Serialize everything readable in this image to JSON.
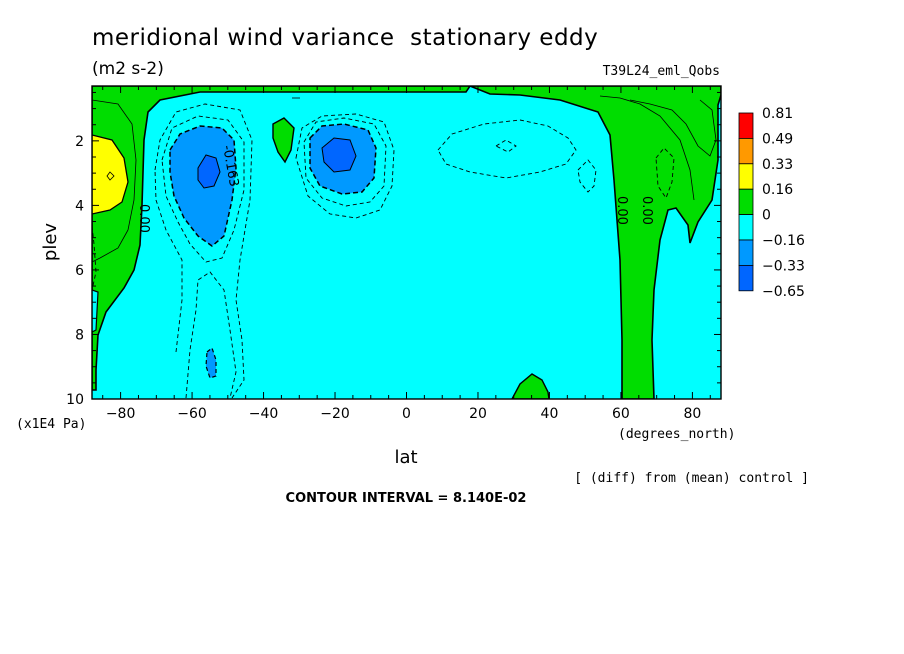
{
  "chart_data": {
    "type": "contour",
    "title": "meridional wind variance  stationary eddy",
    "units": "(m2 s-2)",
    "experiment": "T39L24_eml_Qobs",
    "xlabel": "lat",
    "xunits": "(degrees_north)",
    "ylabel": "plev",
    "yunits": "(x1E4 Pa)",
    "xlim": [
      -88,
      88
    ],
    "ylim": [
      10,
      0.3
    ],
    "x_ticks": [
      -80,
      -60,
      -40,
      -20,
      0,
      20,
      40,
      60,
      80
    ],
    "x_tick_labels": [
      "−80",
      "−60",
      "−40",
      "−20",
      "0",
      "20",
      "40",
      "60",
      "80"
    ],
    "y_ticks": [
      2,
      4,
      6,
      8,
      10
    ],
    "y_tick_labels": [
      "2",
      "4",
      "6",
      "8",
      "10"
    ],
    "contour_labels": [
      {
        "text": "-0.163",
        "lat": -52,
        "plev": 3.0
      },
      {
        "text": "0.00",
        "lat": -74,
        "plev": 4.5
      },
      {
        "text": "0.00",
        "lat": 61,
        "plev": 4.3
      },
      {
        "text": "0.00",
        "lat": 69,
        "plev": 4.3
      }
    ],
    "legend": {
      "levels": [
        "0.81",
        "0.49",
        "0.33",
        "0.16",
        "0",
        "−0.16",
        "−0.33",
        "−0.65"
      ],
      "colors": [
        "#ff0000",
        "#ff9900",
        "#ffff00",
        "#00dd00",
        "#00ffff",
        "#0099ff",
        "#0066ff"
      ]
    },
    "fill_colors": {
      "light_blue": "#00ffff",
      "green": "#00dd00",
      "yellow": "#ffff00",
      "mid_blue": "#0099ff",
      "deep_blue": "#0066ff"
    },
    "note": "[ (diff) from (mean) control ]",
    "contour_interval": "CONTOUR INTERVAL = 8.140E-02"
  }
}
